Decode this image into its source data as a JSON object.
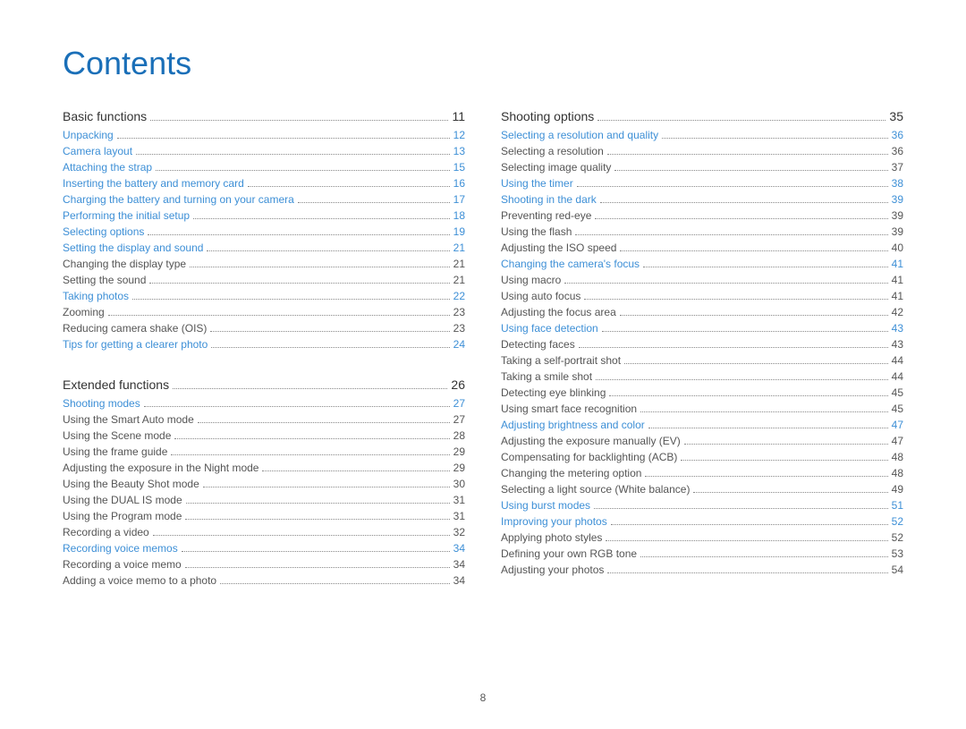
{
  "title": "Contents",
  "page_number": "8",
  "colors": {
    "title": "#1a6fb8",
    "link": "#3d8fd6",
    "text": "#555555",
    "heading": "#333333",
    "background": "#ffffff"
  },
  "left": [
    {
      "heading": {
        "label": "Basic functions",
        "page": "11"
      },
      "items": [
        {
          "type": "link",
          "label": "Unpacking",
          "page": "12"
        },
        {
          "type": "link",
          "label": "Camera layout",
          "page": "13"
        },
        {
          "type": "link",
          "label": "Attaching the strap",
          "page": "15"
        },
        {
          "type": "link",
          "label": "Inserting the battery and memory card",
          "page": "16"
        },
        {
          "type": "link",
          "label": "Charging the battery and turning on your camera",
          "page": "17"
        },
        {
          "type": "link",
          "label": "Performing the initial setup",
          "page": "18"
        },
        {
          "type": "link",
          "label": "Selecting options",
          "page": "19"
        },
        {
          "type": "link",
          "label": "Setting the display and sound",
          "page": "21"
        },
        {
          "type": "sub",
          "label": "Changing the display type",
          "page": "21"
        },
        {
          "type": "sub",
          "label": "Setting the sound",
          "page": "21"
        },
        {
          "type": "link",
          "label": "Taking photos",
          "page": "22"
        },
        {
          "type": "sub",
          "label": "Zooming",
          "page": "23"
        },
        {
          "type": "sub",
          "label": "Reducing camera shake (OIS)",
          "page": "23"
        },
        {
          "type": "link",
          "label": "Tips for getting a clearer photo",
          "page": "24"
        }
      ]
    },
    {
      "heading": {
        "label": "Extended functions",
        "page": "26"
      },
      "items": [
        {
          "type": "link",
          "label": "Shooting modes",
          "page": "27"
        },
        {
          "type": "sub",
          "label": "Using the Smart Auto mode",
          "page": "27"
        },
        {
          "type": "sub",
          "label": "Using the Scene mode",
          "page": "28"
        },
        {
          "type": "sub",
          "label": "Using the frame guide",
          "page": "29"
        },
        {
          "type": "sub",
          "label": "Adjusting the exposure in the Night mode",
          "page": "29"
        },
        {
          "type": "sub",
          "label": "Using the Beauty Shot mode",
          "page": "30"
        },
        {
          "type": "sub",
          "label": "Using the DUAL IS mode",
          "page": "31"
        },
        {
          "type": "sub",
          "label": "Using the Program mode",
          "page": "31"
        },
        {
          "type": "sub",
          "label": "Recording a video",
          "page": "32"
        },
        {
          "type": "link",
          "label": "Recording voice memos",
          "page": "34"
        },
        {
          "type": "sub",
          "label": "Recording a voice memo",
          "page": "34"
        },
        {
          "type": "sub",
          "label": "Adding a voice memo to a photo",
          "page": "34"
        }
      ]
    }
  ],
  "right": [
    {
      "heading": {
        "label": "Shooting options",
        "page": "35"
      },
      "items": [
        {
          "type": "link",
          "label": "Selecting a resolution and quality",
          "page": "36"
        },
        {
          "type": "sub",
          "label": "Selecting a resolution",
          "page": "36"
        },
        {
          "type": "sub",
          "label": "Selecting image quality",
          "page": "37"
        },
        {
          "type": "link",
          "label": "Using the timer",
          "page": "38"
        },
        {
          "type": "link",
          "label": "Shooting in the dark",
          "page": "39"
        },
        {
          "type": "sub",
          "label": "Preventing red-eye",
          "page": "39"
        },
        {
          "type": "sub",
          "label": "Using the flash",
          "page": "39"
        },
        {
          "type": "sub",
          "label": "Adjusting the ISO speed",
          "page": "40"
        },
        {
          "type": "link",
          "label": "Changing the camera's focus",
          "page": "41"
        },
        {
          "type": "sub",
          "label": "Using macro",
          "page": "41"
        },
        {
          "type": "sub",
          "label": "Using auto focus",
          "page": "41"
        },
        {
          "type": "sub",
          "label": "Adjusting the focus area",
          "page": "42"
        },
        {
          "type": "link",
          "label": "Using face detection",
          "page": "43"
        },
        {
          "type": "sub",
          "label": "Detecting faces",
          "page": "43"
        },
        {
          "type": "sub",
          "label": "Taking a self-portrait shot",
          "page": "44"
        },
        {
          "type": "sub",
          "label": "Taking a smile shot",
          "page": "44"
        },
        {
          "type": "sub",
          "label": "Detecting eye blinking",
          "page": "45"
        },
        {
          "type": "sub",
          "label": "Using smart face recognition",
          "page": "45"
        },
        {
          "type": "link",
          "label": "Adjusting brightness and color",
          "page": "47"
        },
        {
          "type": "sub",
          "label": "Adjusting the exposure manually (EV)",
          "page": "47"
        },
        {
          "type": "sub",
          "label": "Compensating for backlighting (ACB)",
          "page": "48"
        },
        {
          "type": "sub",
          "label": "Changing the metering option",
          "page": "48"
        },
        {
          "type": "sub",
          "label": "Selecting a light source (White balance)",
          "page": "49"
        },
        {
          "type": "link",
          "label": "Using burst modes",
          "page": "51"
        },
        {
          "type": "link",
          "label": "Improving your photos",
          "page": "52"
        },
        {
          "type": "sub",
          "label": "Applying photo styles",
          "page": "52"
        },
        {
          "type": "sub",
          "label": "Defining your own RGB tone",
          "page": "53"
        },
        {
          "type": "sub",
          "label": "Adjusting your photos",
          "page": "54"
        }
      ]
    }
  ]
}
